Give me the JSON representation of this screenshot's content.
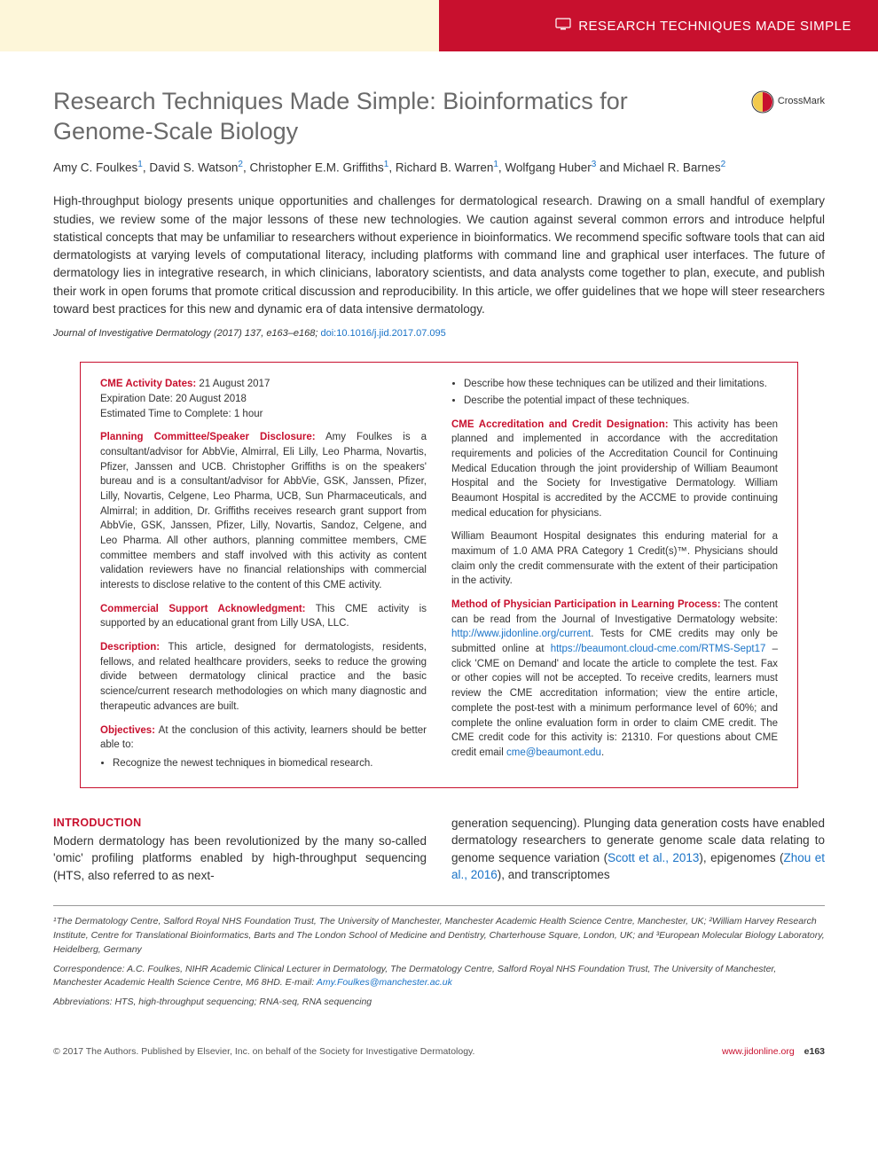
{
  "banner": {
    "label": "RESEARCH TECHNIQUES MADE SIMPLE",
    "bg_left": "#fdf6d9",
    "bg_right": "#c8102e"
  },
  "crossmark": "CrossMark",
  "title": "Research Techniques Made Simple: Bioinformatics for Genome-Scale Biology",
  "authors_html": "Amy C. Foulkes<sup>1</sup>, David S. Watson<sup>2</sup>, Christopher E.M. Griffiths<sup>1</sup>, Richard B. Warren<sup>1</sup>, Wolfgang Huber<sup>3</sup> and Michael R. Barnes<sup>2</sup>",
  "abstract": "High-throughput biology presents unique opportunities and challenges for dermatological research. Drawing on a small handful of exemplary studies, we review some of the major lessons of these new technologies. We caution against several common errors and introduce helpful statistical concepts that may be unfamiliar to researchers without experience in bioinformatics. We recommend specific software tools that can aid dermatologists at varying levels of computational literacy, including platforms with command line and graphical user interfaces. The future of dermatology lies in integrative research, in which clinicians, laboratory scientists, and data analysts come together to plan, execute, and publish their work in open forums that promote critical discussion and reproducibility. In this article, we offer guidelines that we hope will steer researchers toward best practices for this new and dynamic era of data intensive dermatology.",
  "citation": {
    "journal": "Journal of Investigative Dermatology",
    "year_vol": "(2017) 137, e163–e168;",
    "doi_label": "doi:10.1016/j.jid.2017.07.095"
  },
  "cme": {
    "dates_heading": "CME Activity Dates:",
    "dates_text": " 21 August 2017",
    "expiration": "Expiration Date: 20 August 2018",
    "time": "Estimated Time to Complete: 1 hour",
    "planning_heading": "Planning Committee/Speaker Disclosure:",
    "planning_text": " Amy Foulkes is a consultant/advisor for AbbVie, Almirral, Eli Lilly, Leo Pharma, Novartis, Pfizer, Janssen and UCB. Christopher Griffiths is on the speakers' bureau and is a consultant/advisor for AbbVie, GSK, Janssen, Pfizer, Lilly, Novartis, Celgene, Leo Pharma, UCB, Sun Pharmaceuticals, and Almirral; in addition, Dr. Griffiths receives research grant support from AbbVie, GSK, Janssen, Pfizer, Lilly, Novartis, Sandoz, Celgene, and Leo Pharma. All other authors, planning committee members, CME committee members and staff involved with this activity as content validation reviewers have no financial relationships with commercial interests to disclose relative to the content of this CME activity.",
    "commercial_heading": "Commercial Support Acknowledgment:",
    "commercial_text": " This CME activity is supported by an educational grant from Lilly USA, LLC.",
    "description_heading": "Description:",
    "description_text": " This article, designed for dermatologists, residents, fellows, and related healthcare providers, seeks to reduce the growing divide between dermatology clinical practice and the basic science/current research methodologies on which many diagnostic and therapeutic advances are built.",
    "objectives_heading": "Objectives:",
    "objectives_intro": " At the conclusion of this activity, learners should be better able to:",
    "obj_left": [
      "Recognize the newest techniques in biomedical research."
    ],
    "obj_right": [
      "Describe how these techniques can be utilized and their limitations.",
      "Describe the potential impact of these techniques."
    ],
    "accred_heading": "CME Accreditation and Credit Designation:",
    "accred_text": " This activity has been planned and implemented in accordance with the accreditation requirements and policies of the Accreditation Council for Continuing Medical Education through the joint providership of William Beaumont Hospital and the Society for Investigative Dermatology. William Beaumont Hospital is accredited by the ACCME to provide continuing medical education for physicians.",
    "accred_text2": "William Beaumont Hospital designates this enduring material for a maximum of 1.0 AMA PRA Category 1 Credit(s)™. Physicians should claim only the credit commensurate with the extent of their participation in the activity.",
    "method_heading": "Method of Physician Participation in Learning Process:",
    "method_text_pre": " The content can be read from the Journal of Investigative Dermatology website: ",
    "method_link1": "http://www.jidonline.org/current",
    "method_text_mid": ". Tests for CME credits may only be submitted online at ",
    "method_link2": "https://beaumont.cloud-cme.com/RTMS-Sept17",
    "method_text_post": " – click 'CME on Demand' and locate the article to complete the test. Fax or other copies will not be accepted. To receive credits, learners must review the CME accreditation information; view the entire article, complete the post-test with a minimum performance level of 60%; and complete the online evaluation form in order to claim CME credit. The CME credit code for this activity is: 21310. For questions about CME credit email ",
    "method_email": "cme@beaumont.edu",
    "method_period": "."
  },
  "intro": {
    "heading": "INTRODUCTION",
    "left_text": "Modern dermatology has been revolutionized by the many so-called 'omic' profiling platforms enabled by high-throughput sequencing (HTS, also referred to as next-",
    "right_pre": "generation sequencing). Plunging data generation costs have enabled dermatology researchers to generate genome scale data relating to genome sequence variation (",
    "right_cite1": "Scott et al., 2013",
    "right_mid": "), epigenomes (",
    "right_cite2": "Zhou et al., 2016",
    "right_post": "), and transcriptomes"
  },
  "footnotes": {
    "affil": "¹The Dermatology Centre, Salford Royal NHS Foundation Trust, The University of Manchester, Manchester Academic Health Science Centre, Manchester, UK; ²William Harvey Research Institute, Centre for Translational Bioinformatics, Barts and The London School of Medicine and Dentistry, Charterhouse Square, London, UK; and ³European Molecular Biology Laboratory, Heidelberg, Germany",
    "corr_pre": "Correspondence: A.C. Foulkes, NIHR Academic Clinical Lecturer in Dermatology, The Dermatology Centre, Salford Royal NHS Foundation Trust, The University of Manchester, Manchester Academic Health Science Centre, M6 8HD. E-mail: ",
    "corr_email": "Amy.Foulkes@manchester.ac.uk",
    "abbr": "Abbreviations: HTS, high-throughput sequencing; RNA-seq, RNA sequencing"
  },
  "footer": {
    "left": "© 2017 The Authors. Published by Elsevier, Inc. on behalf of the Society for Investigative Dermatology.",
    "url": "www.jidonline.org",
    "page": "e163"
  }
}
